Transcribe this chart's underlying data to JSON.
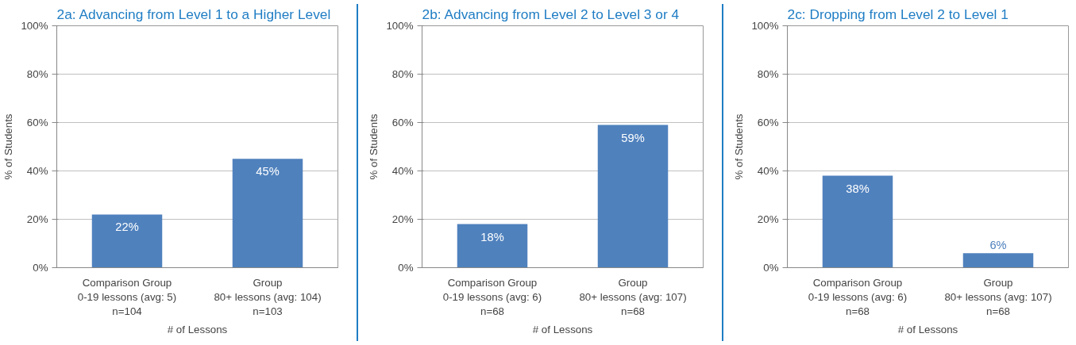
{
  "chart_data": [
    {
      "type": "bar",
      "title": "2a: Advancing from Level 1 to a Higher Level",
      "categories": [
        "Comparison Group\n0-19 lessons (avg: 5)\nn=104",
        "Group\n80+ lessons (avg: 104)\nn=103"
      ],
      "values": [
        22,
        45
      ],
      "value_labels": [
        "22%",
        "45%"
      ],
      "color": "#4f81bd",
      "ylim": [
        0,
        100
      ],
      "yticks": [
        {
          "value": 0,
          "label": "0%"
        },
        {
          "value": 20,
          "label": "20%"
        },
        {
          "value": 40,
          "label": "40%"
        },
        {
          "value": 60,
          "label": "60%"
        },
        {
          "value": 80,
          "label": "80%"
        },
        {
          "value": 100,
          "label": "100%"
        }
      ],
      "ylabel": "% of Students",
      "xlabel": "# of Lessons",
      "grid": "y"
    },
    {
      "type": "bar",
      "title": "2b: Advancing from Level 2 to Level 3 or 4",
      "categories": [
        "Comparison Group\n0-19 lessons (avg: 6)\nn=68",
        "Group\n80+ lessons (avg: 107)\nn=68"
      ],
      "values": [
        18,
        59
      ],
      "value_labels": [
        "18%",
        "59%"
      ],
      "color": "#4f81bd",
      "ylim": [
        0,
        100
      ],
      "yticks": [
        {
          "value": 0,
          "label": "0%"
        },
        {
          "value": 20,
          "label": "20%"
        },
        {
          "value": 40,
          "label": "40%"
        },
        {
          "value": 60,
          "label": "60%"
        },
        {
          "value": 80,
          "label": "80%"
        },
        {
          "value": 100,
          "label": "100%"
        }
      ],
      "ylabel": "% of Students",
      "xlabel": "# of Lessons",
      "grid": "y"
    },
    {
      "type": "bar",
      "title": "2c: Dropping from Level 2 to Level 1",
      "categories": [
        "Comparison Group\n0-19 lessons (avg: 6)\nn=68",
        "Group\n80+ lessons (avg: 107)\nn=68"
      ],
      "values": [
        38,
        6
      ],
      "value_labels": [
        "38%",
        "6%"
      ],
      "color": "#4f81bd",
      "ylim": [
        0,
        100
      ],
      "yticks": [
        {
          "value": 0,
          "label": "0%"
        },
        {
          "value": 20,
          "label": "20%"
        },
        {
          "value": 40,
          "label": "40%"
        },
        {
          "value": 60,
          "label": "60%"
        },
        {
          "value": 80,
          "label": "80%"
        },
        {
          "value": 100,
          "label": "100%"
        }
      ],
      "ylabel": "% of Students",
      "xlabel": "# of Lessons",
      "grid": "y"
    }
  ]
}
